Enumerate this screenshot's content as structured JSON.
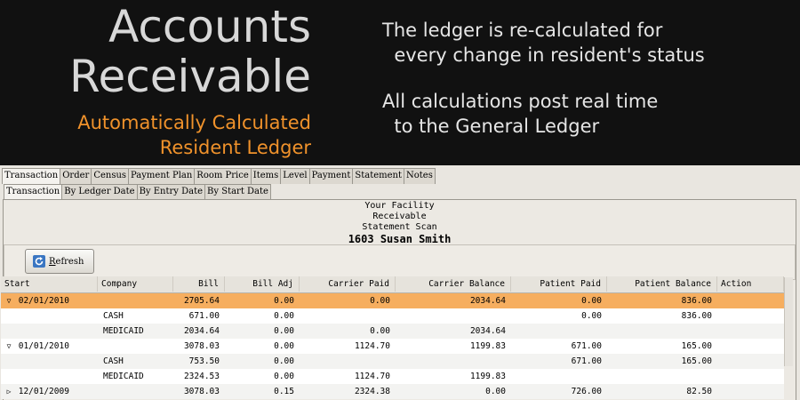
{
  "banner": {
    "title_line1": "Accounts",
    "title_line2": "Receivable",
    "subtitle_line1": "Automatically Calculated",
    "subtitle_line2": "Resident Ledger",
    "note1_line1": "The ledger is re-calculated for",
    "note1_line2": "  every change in resident's status",
    "note2_line1": "All calculations post real time",
    "note2_line2": "  to the General Ledger"
  },
  "tabs_main": [
    "Transaction",
    "Order",
    "Census",
    "Payment Plan",
    "Room Price",
    "Items",
    "Level",
    "Payment",
    "Statement",
    "Notes"
  ],
  "tabs_sub": [
    "Transaction",
    "By Ledger Date",
    "By Entry Date",
    "By Start Date"
  ],
  "report": {
    "facility": "Your Facility",
    "type": "Receivable",
    "scan": "Statement Scan",
    "resident": "1603 Susan Smith"
  },
  "toolbar": {
    "refresh_underline": "R",
    "refresh_rest": "efresh"
  },
  "columns": [
    "Start",
    "Company",
    "Bill",
    "Bill Adj",
    "Carrier Paid",
    "Carrier Balance",
    "Patient Paid",
    "Patient Balance",
    "Action"
  ],
  "rows": [
    {
      "expander": "down",
      "start": "02/01/2010",
      "company": "",
      "bill": "2705.64",
      "bill_adj": "0.00",
      "carrier_paid": "0.00",
      "carrier_balance": "2034.64",
      "patient_paid": "0.00",
      "patient_balance": "836.00",
      "action": "",
      "selected": true
    },
    {
      "expander": "",
      "start": "",
      "company": "CASH",
      "bill": "671.00",
      "bill_adj": "0.00",
      "carrier_paid": "",
      "carrier_balance": "",
      "patient_paid": "0.00",
      "patient_balance": "836.00",
      "action": ""
    },
    {
      "expander": "",
      "start": "",
      "company": "MEDICAID",
      "bill": "2034.64",
      "bill_adj": "0.00",
      "carrier_paid": "0.00",
      "carrier_balance": "2034.64",
      "patient_paid": "",
      "patient_balance": "",
      "action": ""
    },
    {
      "expander": "down",
      "start": "01/01/2010",
      "company": "",
      "bill": "3078.03",
      "bill_adj": "0.00",
      "carrier_paid": "1124.70",
      "carrier_balance": "1199.83",
      "patient_paid": "671.00",
      "patient_balance": "165.00",
      "action": ""
    },
    {
      "expander": "",
      "start": "",
      "company": "CASH",
      "bill": "753.50",
      "bill_adj": "0.00",
      "carrier_paid": "",
      "carrier_balance": "",
      "patient_paid": "671.00",
      "patient_balance": "165.00",
      "action": ""
    },
    {
      "expander": "",
      "start": "",
      "company": "MEDICAID",
      "bill": "2324.53",
      "bill_adj": "0.00",
      "carrier_paid": "1124.70",
      "carrier_balance": "1199.83",
      "patient_paid": "",
      "patient_balance": "",
      "action": ""
    },
    {
      "expander": "right",
      "start": "12/01/2009",
      "company": "",
      "bill": "3078.03",
      "bill_adj": "0.15",
      "carrier_paid": "2324.38",
      "carrier_balance": "0.00",
      "patient_paid": "726.00",
      "patient_balance": "82.50",
      "action": ""
    }
  ],
  "colors": {
    "banner_bg": "#111111",
    "title": "#d8d8d8",
    "subtitle": "#f0922b",
    "selected_row": "#f6ae5f"
  }
}
